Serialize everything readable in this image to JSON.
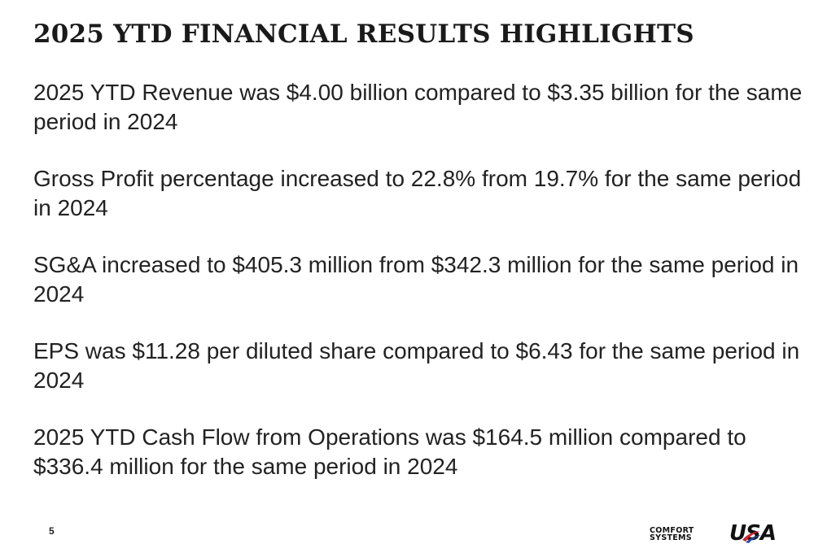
{
  "slide": {
    "title": "2025 YTD FINANCIAL RESULTS HIGHLIGHTS",
    "page_number": "5"
  },
  "highlights": [
    "2025 YTD Revenue was $4.00 billion compared to $3.35 billion for the same period in 2024",
    "Gross Profit percentage increased to 22.8% from 19.7% for the same period in 2024",
    "SG&A increased to $405.3 million from $342.3 million for the same period in 2024",
    "EPS was $11.28 per diluted share compared to $6.43 for the same period in 2024",
    "2025 YTD Cash Flow from Operations was $164.5 million compared to $336.4 million for the same period in 2024"
  ],
  "logo": {
    "line1": "COMFORT",
    "line2": "SYSTEMS",
    "mark": "USA",
    "colors": {
      "text": "#111111",
      "red": "#d2232a",
      "blue": "#1f4fa0"
    }
  }
}
